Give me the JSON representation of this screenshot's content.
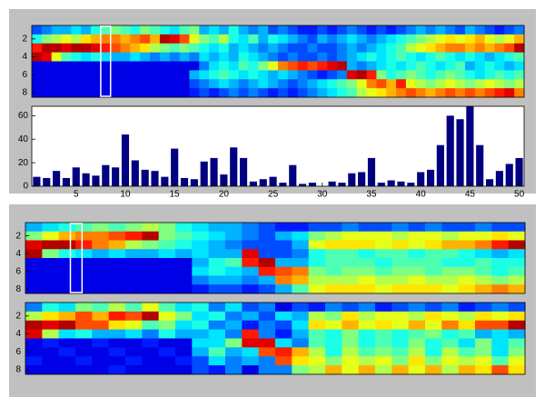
{
  "chart_data": [
    {
      "type": "heatmap",
      "colormap": "jet",
      "xlim": [
        0.5,
        50.5
      ],
      "ylim": [
        0.5,
        8.5
      ],
      "ydir": "reverse",
      "yticks": [
        2,
        4,
        6,
        8
      ],
      "highlight": [
        7.5,
        8.5
      ],
      "z": [
        [
          0.2,
          0.25,
          0.3,
          0.3,
          0.35,
          0.3,
          0.4,
          0.45,
          0.5,
          0.45,
          0.4,
          0.5,
          0.45,
          0.4,
          0.35,
          0.45,
          0.5,
          0.3,
          0.35,
          0.3,
          0.4,
          0.3,
          0.25,
          0.3,
          0.2,
          0.25,
          0.2,
          0.15,
          0.15,
          0.2,
          0.15,
          0.2,
          0.25,
          0.2,
          0.15,
          0.2,
          0.15,
          0.2,
          0.25,
          0.3,
          0.25,
          0.3,
          0.25,
          0.2,
          0.3,
          0.25,
          0.2,
          0.15,
          0.2,
          0.25
        ],
        [
          0.4,
          0.5,
          0.55,
          0.6,
          0.55,
          0.65,
          0.7,
          0.75,
          0.75,
          0.7,
          0.75,
          0.8,
          0.7,
          0.95,
          0.9,
          0.8,
          0.6,
          0.5,
          0.45,
          0.55,
          0.4,
          0.35,
          0.45,
          0.3,
          0.4,
          0.35,
          0.3,
          0.25,
          0.2,
          0.3,
          0.25,
          0.3,
          0.35,
          0.3,
          0.25,
          0.3,
          0.35,
          0.4,
          0.45,
          0.5,
          0.55,
          0.6,
          0.65,
          0.6,
          0.65,
          0.7,
          0.6,
          0.55,
          0.6,
          0.7
        ],
        [
          0.85,
          0.95,
          0.95,
          0.9,
          0.95,
          0.95,
          0.9,
          0.85,
          0.8,
          0.75,
          0.7,
          0.65,
          0.55,
          0.5,
          0.45,
          0.5,
          0.45,
          0.4,
          0.35,
          0.4,
          0.3,
          0.35,
          0.3,
          0.25,
          0.3,
          0.25,
          0.2,
          0.2,
          0.25,
          0.2,
          0.2,
          0.25,
          0.3,
          0.25,
          0.3,
          0.35,
          0.4,
          0.45,
          0.55,
          0.6,
          0.65,
          0.7,
          0.75,
          0.75,
          0.7,
          0.75,
          0.7,
          0.75,
          0.8,
          0.95
        ],
        [
          0.95,
          0.9,
          0.6,
          0.45,
          0.4,
          0.35,
          0.4,
          0.35,
          0.3,
          0.3,
          0.35,
          0.3,
          0.25,
          0.3,
          0.25,
          0.3,
          0.25,
          0.35,
          0.3,
          0.35,
          0.3,
          0.4,
          0.35,
          0.3,
          0.25,
          0.2,
          0.25,
          0.2,
          0.2,
          0.25,
          0.2,
          0.25,
          0.3,
          0.35,
          0.4,
          0.35,
          0.4,
          0.45,
          0.4,
          0.35,
          0.4,
          0.45,
          0.4,
          0.35,
          0.4,
          0.35,
          0.3,
          0.35,
          0.4,
          0.45
        ],
        [
          0.1,
          0.1,
          0.1,
          0.1,
          0.1,
          0.1,
          0.1,
          0.1,
          0.1,
          0.1,
          0.1,
          0.1,
          0.1,
          0.1,
          0.1,
          0.1,
          0.1,
          0.25,
          0.35,
          0.4,
          0.35,
          0.45,
          0.4,
          0.5,
          0.6,
          0.75,
          0.8,
          0.85,
          0.8,
          0.85,
          0.9,
          0.95,
          0.3,
          0.25,
          0.3,
          0.35,
          0.4,
          0.35,
          0.4,
          0.45,
          0.4,
          0.35,
          0.4,
          0.45,
          0.3,
          0.35,
          0.4,
          0.35,
          0.3,
          0.35
        ],
        [
          0.1,
          0.1,
          0.1,
          0.1,
          0.1,
          0.1,
          0.1,
          0.1,
          0.1,
          0.1,
          0.1,
          0.1,
          0.1,
          0.1,
          0.1,
          0.1,
          0.3,
          0.35,
          0.4,
          0.45,
          0.4,
          0.35,
          0.4,
          0.35,
          0.3,
          0.35,
          0.3,
          0.25,
          0.2,
          0.15,
          0.2,
          0.25,
          0.9,
          0.95,
          0.85,
          0.5,
          0.4,
          0.45,
          0.5,
          0.45,
          0.4,
          0.45,
          0.5,
          0.45,
          0.4,
          0.35,
          0.4,
          0.45,
          0.4,
          0.45
        ],
        [
          0.1,
          0.1,
          0.1,
          0.1,
          0.1,
          0.1,
          0.1,
          0.1,
          0.1,
          0.1,
          0.1,
          0.1,
          0.1,
          0.1,
          0.1,
          0.1,
          0.2,
          0.25,
          0.3,
          0.35,
          0.3,
          0.25,
          0.3,
          0.35,
          0.3,
          0.25,
          0.2,
          0.25,
          0.3,
          0.35,
          0.4,
          0.45,
          0.5,
          0.6,
          0.75,
          0.8,
          0.7,
          0.85,
          0.6,
          0.55,
          0.5,
          0.55,
          0.6,
          0.55,
          0.5,
          0.55,
          0.6,
          0.55,
          0.5,
          0.55
        ],
        [
          0.1,
          0.1,
          0.1,
          0.1,
          0.1,
          0.1,
          0.1,
          0.1,
          0.1,
          0.1,
          0.1,
          0.1,
          0.1,
          0.1,
          0.1,
          0.1,
          0.15,
          0.2,
          0.15,
          0.2,
          0.25,
          0.2,
          0.25,
          0.2,
          0.15,
          0.2,
          0.15,
          0.2,
          0.25,
          0.3,
          0.35,
          0.4,
          0.45,
          0.55,
          0.6,
          0.65,
          0.7,
          0.75,
          0.8,
          0.75,
          0.7,
          0.75,
          0.8,
          0.75,
          0.8,
          0.75,
          0.8,
          0.85,
          0.9,
          0.75
        ]
      ]
    },
    {
      "type": "bar",
      "color": "#000080",
      "xlim": [
        0.5,
        50.5
      ],
      "ylim": [
        0,
        68
      ],
      "xticks": [
        5,
        10,
        15,
        20,
        25,
        30,
        35,
        40,
        45,
        50
      ],
      "yticks": [
        0,
        20,
        40,
        60
      ],
      "x": [
        1,
        2,
        3,
        4,
        5,
        6,
        7,
        8,
        9,
        10,
        11,
        12,
        13,
        14,
        15,
        16,
        17,
        18,
        19,
        20,
        21,
        22,
        23,
        24,
        25,
        26,
        27,
        28,
        29,
        30,
        31,
        32,
        33,
        34,
        35,
        36,
        37,
        38,
        39,
        40,
        41,
        42,
        43,
        44,
        45,
        46,
        47,
        48,
        49,
        50
      ],
      "values": [
        8,
        7,
        13,
        7,
        16,
        11,
        9,
        18,
        16,
        44,
        22,
        14,
        13,
        8,
        32,
        7,
        6,
        21,
        24,
        10,
        33,
        24,
        4,
        6,
        8,
        3,
        18,
        2,
        3,
        0,
        4,
        3,
        11,
        12,
        24,
        3,
        5,
        4,
        3,
        12,
        14,
        35,
        60,
        57,
        68,
        35,
        6,
        13,
        19,
        24
      ]
    },
    {
      "type": "heatmap",
      "colormap": "jet",
      "xlim": [
        0.5,
        30.5
      ],
      "ylim": [
        0.5,
        8.5
      ],
      "ydir": "reverse",
      "yticks": [
        2,
        4,
        6,
        8
      ],
      "highlight": [
        3.2,
        3.9
      ],
      "z": [
        [
          0.3,
          0.35,
          0.4,
          0.45,
          0.5,
          0.45,
          0.5,
          0.55,
          0.5,
          0.4,
          0.35,
          0.3,
          0.3,
          0.25,
          0.2,
          0.15,
          0.15,
          0.2,
          0.2,
          0.25,
          0.2,
          0.2,
          0.25,
          0.2,
          0.25,
          0.2,
          0.2,
          0.25,
          0.2,
          0.2
        ],
        [
          0.5,
          0.6,
          0.7,
          0.75,
          0.75,
          0.8,
          0.85,
          0.95,
          0.5,
          0.45,
          0.4,
          0.35,
          0.3,
          0.25,
          0.2,
          0.3,
          0.35,
          0.5,
          0.55,
          0.6,
          0.6,
          0.6,
          0.55,
          0.6,
          0.6,
          0.55,
          0.6,
          0.6,
          0.65,
          0.6
        ],
        [
          0.9,
          0.95,
          0.95,
          0.85,
          0.75,
          0.7,
          0.55,
          0.5,
          0.45,
          0.4,
          0.35,
          0.3,
          0.25,
          0.2,
          0.2,
          0.2,
          0.3,
          0.6,
          0.65,
          0.65,
          0.65,
          0.6,
          0.65,
          0.6,
          0.65,
          0.7,
          0.7,
          0.75,
          0.85,
          0.95
        ],
        [
          0.95,
          0.5,
          0.4,
          0.35,
          0.3,
          0.35,
          0.3,
          0.3,
          0.35,
          0.3,
          0.35,
          0.3,
          0.3,
          0.9,
          0.2,
          0.2,
          0.25,
          0.4,
          0.45,
          0.45,
          0.4,
          0.45,
          0.45,
          0.4,
          0.45,
          0.45,
          0.4,
          0.35,
          0.3,
          0.35
        ],
        [
          0.1,
          0.1,
          0.1,
          0.1,
          0.1,
          0.1,
          0.1,
          0.1,
          0.1,
          0.1,
          0.3,
          0.4,
          0.45,
          0.85,
          0.95,
          0.3,
          0.3,
          0.4,
          0.45,
          0.45,
          0.45,
          0.4,
          0.45,
          0.45,
          0.45,
          0.4,
          0.4,
          0.45,
          0.4,
          0.4
        ],
        [
          0.1,
          0.1,
          0.1,
          0.1,
          0.1,
          0.1,
          0.1,
          0.1,
          0.1,
          0.1,
          0.35,
          0.4,
          0.35,
          0.3,
          0.85,
          0.8,
          0.75,
          0.5,
          0.45,
          0.5,
          0.5,
          0.45,
          0.5,
          0.5,
          0.45,
          0.5,
          0.5,
          0.45,
          0.4,
          0.45
        ],
        [
          0.1,
          0.1,
          0.1,
          0.1,
          0.1,
          0.1,
          0.1,
          0.1,
          0.1,
          0.1,
          0.25,
          0.3,
          0.3,
          0.25,
          0.3,
          0.75,
          0.7,
          0.55,
          0.55,
          0.55,
          0.6,
          0.55,
          0.55,
          0.6,
          0.55,
          0.55,
          0.6,
          0.55,
          0.5,
          0.55
        ],
        [
          0.1,
          0.1,
          0.1,
          0.1,
          0.1,
          0.1,
          0.1,
          0.1,
          0.1,
          0.1,
          0.15,
          0.2,
          0.2,
          0.15,
          0.2,
          0.3,
          0.45,
          0.6,
          0.65,
          0.65,
          0.65,
          0.6,
          0.65,
          0.65,
          0.65,
          0.6,
          0.65,
          0.7,
          0.75,
          0.7
        ]
      ]
    },
    {
      "type": "heatmap",
      "colormap": "jet",
      "xlim": [
        0.5,
        30.5
      ],
      "ylim": [
        0.5,
        8.5
      ],
      "ydir": "reverse",
      "yticks": [
        2,
        4,
        6,
        8
      ],
      "z": [
        [
          0.25,
          0.4,
          0.35,
          0.5,
          0.45,
          0.55,
          0.45,
          0.6,
          0.45,
          0.35,
          0.4,
          0.25,
          0.35,
          0.2,
          0.25,
          0.1,
          0.2,
          0.15,
          0.25,
          0.2,
          0.25,
          0.15,
          0.2,
          0.25,
          0.2,
          0.25,
          0.15,
          0.2,
          0.25,
          0.2
        ],
        [
          0.55,
          0.65,
          0.7,
          0.8,
          0.7,
          0.85,
          0.8,
          0.95,
          0.6,
          0.5,
          0.35,
          0.4,
          0.25,
          0.3,
          0.2,
          0.35,
          0.3,
          0.55,
          0.5,
          0.65,
          0.55,
          0.6,
          0.6,
          0.55,
          0.65,
          0.6,
          0.55,
          0.65,
          0.6,
          0.65
        ],
        [
          0.95,
          0.9,
          0.95,
          0.8,
          0.8,
          0.65,
          0.6,
          0.45,
          0.5,
          0.35,
          0.4,
          0.25,
          0.3,
          0.15,
          0.25,
          0.2,
          0.35,
          0.65,
          0.6,
          0.7,
          0.6,
          0.65,
          0.6,
          0.7,
          0.6,
          0.75,
          0.65,
          0.8,
          0.8,
          0.95
        ],
        [
          0.9,
          0.55,
          0.35,
          0.4,
          0.3,
          0.3,
          0.35,
          0.25,
          0.4,
          0.3,
          0.3,
          0.35,
          0.25,
          0.85,
          0.25,
          0.15,
          0.3,
          0.45,
          0.4,
          0.5,
          0.4,
          0.45,
          0.4,
          0.45,
          0.5,
          0.4,
          0.45,
          0.3,
          0.35,
          0.3
        ],
        [
          0.1,
          0.15,
          0.1,
          0.1,
          0.15,
          0.1,
          0.1,
          0.15,
          0.1,
          0.1,
          0.35,
          0.35,
          0.5,
          0.9,
          0.9,
          0.35,
          0.25,
          0.45,
          0.4,
          0.5,
          0.4,
          0.45,
          0.4,
          0.5,
          0.4,
          0.45,
          0.35,
          0.5,
          0.35,
          0.45
        ],
        [
          0.1,
          0.1,
          0.15,
          0.1,
          0.1,
          0.15,
          0.1,
          0.1,
          0.15,
          0.1,
          0.3,
          0.45,
          0.3,
          0.35,
          0.8,
          0.85,
          0.7,
          0.55,
          0.4,
          0.55,
          0.45,
          0.5,
          0.45,
          0.55,
          0.4,
          0.55,
          0.45,
          0.5,
          0.35,
          0.5
        ],
        [
          0.15,
          0.1,
          0.1,
          0.15,
          0.1,
          0.1,
          0.15,
          0.1,
          0.1,
          0.15,
          0.2,
          0.35,
          0.25,
          0.3,
          0.25,
          0.8,
          0.65,
          0.6,
          0.5,
          0.6,
          0.55,
          0.6,
          0.5,
          0.65,
          0.5,
          0.6,
          0.55,
          0.6,
          0.45,
          0.6
        ],
        [
          0.1,
          0.1,
          0.1,
          0.1,
          0.1,
          0.15,
          0.1,
          0.1,
          0.1,
          0.1,
          0.2,
          0.15,
          0.25,
          0.1,
          0.25,
          0.25,
          0.5,
          0.55,
          0.7,
          0.6,
          0.7,
          0.55,
          0.7,
          0.6,
          0.7,
          0.55,
          0.7,
          0.65,
          0.8,
          0.65
        ]
      ]
    }
  ]
}
